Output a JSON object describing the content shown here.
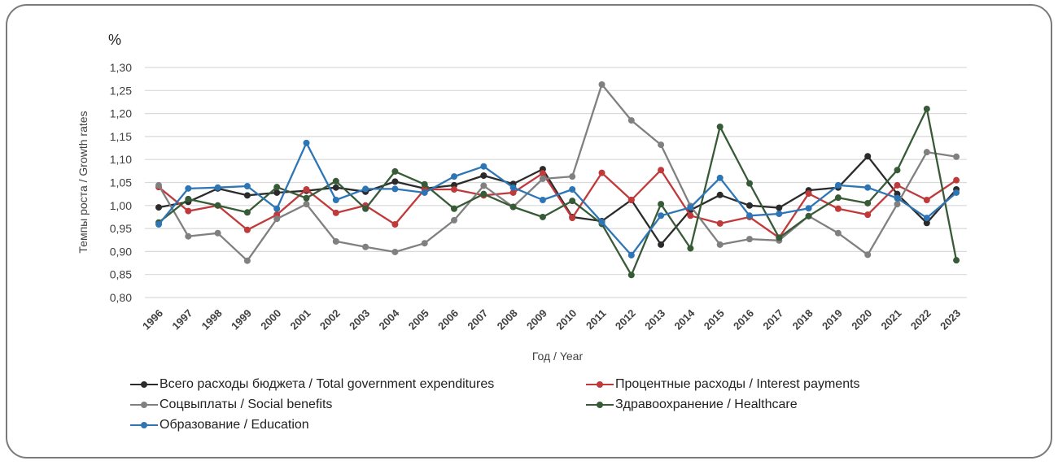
{
  "chart_data": {
    "type": "line",
    "title": "",
    "unit_label": "%",
    "xlabel": "Год / Year",
    "ylabel": "Темпы роста / Growth rates",
    "ylim": [
      0.8,
      1.3
    ],
    "yticks": [
      "0,80",
      "0,85",
      "0,90",
      "0,95",
      "1,00",
      "1,05",
      "1,10",
      "1,15",
      "1,20",
      "1,25",
      "1,30"
    ],
    "ytick_values": [
      0.8,
      0.85,
      0.9,
      0.95,
      1.0,
      1.05,
      1.1,
      1.15,
      1.2,
      1.25,
      1.3
    ],
    "grid": true,
    "legend_position": "bottom",
    "x": [
      "1996",
      "1997",
      "1998",
      "1999",
      "2000",
      "2001",
      "2002",
      "2003",
      "2004",
      "2005",
      "2006",
      "2007",
      "2008",
      "2009",
      "2010",
      "2011",
      "2012",
      "2013",
      "2014",
      "2015",
      "2016",
      "2017",
      "2018",
      "2019",
      "2020",
      "2021",
      "2022",
      "2023"
    ],
    "series": [
      {
        "name": "Всего расходы бюджета / Total government expenditures",
        "color": "#2b2b2b",
        "values": [
          0.996,
          1.008,
          1.037,
          1.022,
          1.028,
          1.032,
          1.039,
          1.03,
          1.052,
          1.037,
          1.044,
          1.065,
          1.047,
          1.079,
          0.975,
          0.966,
          1.012,
          0.915,
          0.99,
          1.023,
          1.0,
          0.995,
          1.033,
          1.039,
          1.107,
          1.025,
          0.962,
          1.035
        ]
      },
      {
        "name": "Процентные расходы / Interest payments",
        "color": "#c0393b",
        "values": [
          1.04,
          0.988,
          1.0,
          0.947,
          0.98,
          1.035,
          0.984,
          1.0,
          0.959,
          1.035,
          1.035,
          1.022,
          1.028,
          1.07,
          0.973,
          1.071,
          1.012,
          1.077,
          0.978,
          0.961,
          0.975,
          0.93,
          1.026,
          0.993,
          0.98,
          1.044,
          1.012,
          1.055
        ]
      },
      {
        "name": "Соцвыплаты / Social benefits",
        "color": "#808080",
        "values": [
          1.044,
          0.933,
          0.94,
          0.88,
          0.971,
          1.003,
          0.922,
          0.91,
          0.899,
          0.918,
          0.968,
          1.043,
          0.997,
          1.058,
          1.063,
          1.263,
          1.185,
          1.132,
          0.999,
          0.915,
          0.927,
          0.924,
          0.977,
          0.94,
          0.893,
          1.003,
          1.116,
          1.106
        ]
      },
      {
        "name": "Здравоохранение / Healthcare",
        "color": "#375a37",
        "values": [
          0.963,
          1.014,
          1.0,
          0.985,
          1.04,
          1.016,
          1.053,
          0.993,
          1.074,
          1.046,
          0.993,
          1.025,
          0.997,
          0.975,
          1.01,
          0.96,
          0.849,
          1.003,
          0.907,
          1.171,
          1.048,
          0.93,
          0.977,
          1.017,
          1.005,
          1.077,
          1.21,
          0.881
        ]
      },
      {
        "name": "Образование / Education",
        "color": "#2e75b6",
        "values": [
          0.959,
          1.037,
          1.039,
          1.042,
          0.993,
          1.136,
          1.012,
          1.036,
          1.036,
          1.028,
          1.063,
          1.085,
          1.039,
          1.012,
          1.035,
          0.964,
          0.892,
          0.978,
          0.996,
          1.06,
          0.978,
          0.982,
          0.994,
          1.044,
          1.039,
          1.016,
          0.973,
          1.028
        ]
      }
    ],
    "legend_order": [
      0,
      1,
      2,
      3,
      4
    ]
  }
}
